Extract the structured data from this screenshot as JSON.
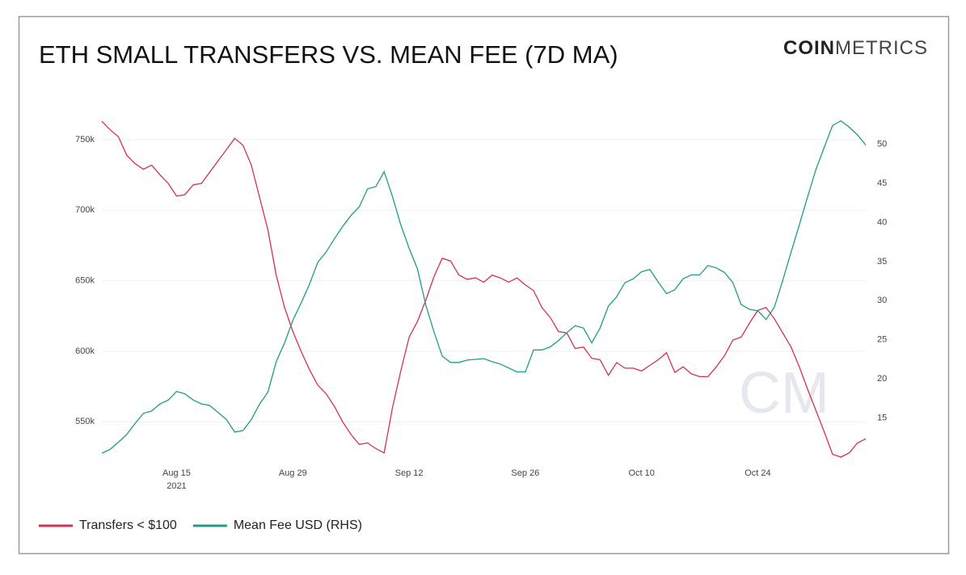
{
  "chart_data": {
    "type": "line",
    "title": "ETH SMALL TRANSFERS VS. MEAN FEE (7D MA)",
    "brand_bold": "COIN",
    "brand_light": "METRICS",
    "watermark": "CM",
    "x": [
      "2021-08-06",
      "2021-08-07",
      "2021-08-08",
      "2021-08-09",
      "2021-08-10",
      "2021-08-11",
      "2021-08-12",
      "2021-08-13",
      "2021-08-14",
      "2021-08-15",
      "2021-08-16",
      "2021-08-17",
      "2021-08-18",
      "2021-08-19",
      "2021-08-20",
      "2021-08-21",
      "2021-08-22",
      "2021-08-23",
      "2021-08-24",
      "2021-08-25",
      "2021-08-26",
      "2021-08-27",
      "2021-08-28",
      "2021-08-29",
      "2021-08-30",
      "2021-08-31",
      "2021-09-01",
      "2021-09-02",
      "2021-09-03",
      "2021-09-04",
      "2021-09-05",
      "2021-09-06",
      "2021-09-07",
      "2021-09-08",
      "2021-09-09",
      "2021-09-10",
      "2021-09-11",
      "2021-09-12",
      "2021-09-13",
      "2021-09-14",
      "2021-09-15",
      "2021-09-16",
      "2021-09-17",
      "2021-09-18",
      "2021-09-19",
      "2021-09-20",
      "2021-09-21",
      "2021-09-22",
      "2021-09-23",
      "2021-09-24",
      "2021-09-25",
      "2021-09-26",
      "2021-09-27",
      "2021-09-28",
      "2021-09-29",
      "2021-09-30",
      "2021-10-01",
      "2021-10-02",
      "2021-10-03",
      "2021-10-04",
      "2021-10-05",
      "2021-10-06",
      "2021-10-07",
      "2021-10-08",
      "2021-10-09",
      "2021-10-10",
      "2021-10-11",
      "2021-10-12",
      "2021-10-13",
      "2021-10-14",
      "2021-10-15",
      "2021-10-16",
      "2021-10-17",
      "2021-10-18",
      "2021-10-19",
      "2021-10-20",
      "2021-10-21",
      "2021-10-22",
      "2021-10-23",
      "2021-10-24",
      "2021-10-25",
      "2021-10-26",
      "2021-10-27",
      "2021-10-28",
      "2021-10-29",
      "2021-10-30",
      "2021-10-31",
      "2021-11-01",
      "2021-11-02",
      "2021-11-03",
      "2021-11-04",
      "2021-11-05",
      "2021-11-06"
    ],
    "xlim": [
      "2021-08-06",
      "2021-11-06"
    ],
    "xticks": [
      {
        "value": "2021-08-15",
        "label": "Aug 15"
      },
      {
        "value": "2021-08-29",
        "label": "Aug 29"
      },
      {
        "value": "2021-09-12",
        "label": "Sep 12"
      },
      {
        "value": "2021-09-26",
        "label": "Sep 26"
      },
      {
        "value": "2021-10-10",
        "label": "Oct 10"
      },
      {
        "value": "2021-10-24",
        "label": "Oct 24"
      }
    ],
    "xtick_sublabel": "2021",
    "ylim": [
      525000,
      770000
    ],
    "yticks": [
      {
        "value": 550000,
        "label": "550k"
      },
      {
        "value": 600000,
        "label": "600k"
      },
      {
        "value": 650000,
        "label": "650k"
      },
      {
        "value": 700000,
        "label": "700k"
      },
      {
        "value": 750000,
        "label": "750k"
      }
    ],
    "y2lim": [
      10,
      54.2
    ],
    "y2ticks": [
      15,
      20,
      25,
      30,
      35,
      40,
      45,
      50
    ],
    "grid": true,
    "legend": "bottom-left",
    "series": [
      {
        "name": "Transfers < $100",
        "color": "#d3324f",
        "values": [
          763000,
          757000,
          752000,
          739000,
          733000,
          729000,
          732000,
          725000,
          719000,
          710000,
          711000,
          718000,
          719000,
          727000,
          735000,
          743000,
          751000,
          746000,
          732000,
          709000,
          686000,
          654000,
          631000,
          614000,
          600000,
          587000,
          576000,
          570000,
          561000,
          550000,
          541000,
          534000,
          535000,
          531000,
          528000,
          560000,
          586000,
          610000,
          621000,
          636000,
          653000,
          666000,
          664000,
          654000,
          651000,
          652000,
          649000,
          654000,
          652000,
          649000,
          652000,
          647000,
          643000,
          631000,
          624000,
          614000,
          613000,
          602000,
          603000,
          595000,
          594000,
          583000,
          592000,
          588000,
          588000,
          586000,
          590000,
          594000,
          599000,
          585000,
          589000,
          584000,
          582000,
          582000,
          589000,
          597000,
          608000,
          610000,
          620000,
          629000,
          631000,
          623000,
          613000,
          603000,
          589000,
          573000,
          558000,
          543000,
          527000,
          525000,
          528000,
          535000,
          538000
        ]
      },
      {
        "name": "Mean Fee USD (RHS)",
        "color": "#1f9c85",
        "axis": "y2",
        "values": [
          10.5,
          11.0,
          11.9,
          12.9,
          14.3,
          15.6,
          15.9,
          16.8,
          17.3,
          18.4,
          18.1,
          17.3,
          16.8,
          16.6,
          15.7,
          14.8,
          13.2,
          13.4,
          14.8,
          16.8,
          18.3,
          22.2,
          24.6,
          27.5,
          29.7,
          32.1,
          34.9,
          36.2,
          37.9,
          39.5,
          40.9,
          42.0,
          44.3,
          44.6,
          46.5,
          43.3,
          39.7,
          36.7,
          34.1,
          29.5,
          26.0,
          22.9,
          22.1,
          22.1,
          22.4,
          22.5,
          22.6,
          22.2,
          21.9,
          21.4,
          20.9,
          20.9,
          23.7,
          23.7,
          24.1,
          24.9,
          25.9,
          26.8,
          26.5,
          24.6,
          26.5,
          29.3,
          30.5,
          32.3,
          32.8,
          33.7,
          34.0,
          32.4,
          30.9,
          31.4,
          32.8,
          33.3,
          33.3,
          34.5,
          34.2,
          33.6,
          32.3,
          29.5,
          28.9,
          28.7,
          27.6,
          29.2,
          32.6,
          36.2,
          39.7,
          43.3,
          46.8,
          49.6,
          52.4,
          53.0,
          52.2,
          51.2,
          49.9
        ]
      }
    ]
  }
}
